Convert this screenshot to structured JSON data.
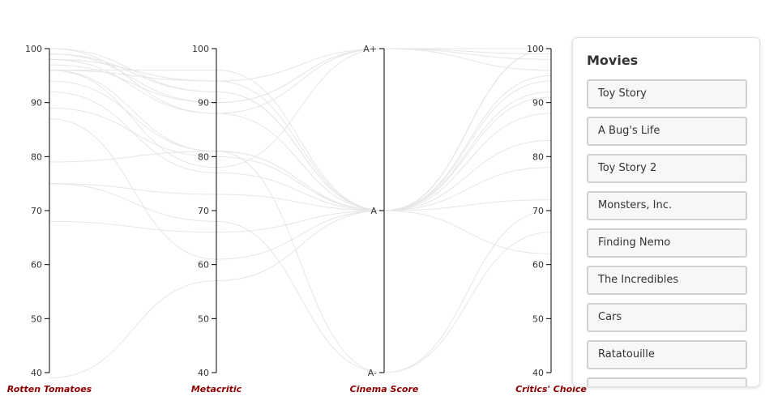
{
  "chart_data": {
    "type": "parallel-coordinates",
    "axes": [
      {
        "name": "Rotten Tomatoes",
        "ticks": [
          "40",
          "50",
          "60",
          "70",
          "80",
          "90",
          "100"
        ],
        "range": [
          40,
          100
        ]
      },
      {
        "name": "Metacritic",
        "ticks": [
          "40",
          "50",
          "60",
          "70",
          "80",
          "90",
          "100"
        ],
        "range": [
          40,
          100
        ]
      },
      {
        "name": "Cinema Score",
        "ticks": [
          "A-",
          "A",
          "A+"
        ],
        "categories": [
          "A-",
          "A",
          "A+"
        ]
      },
      {
        "name": "Critics' Choice",
        "ticks": [
          "40",
          "50",
          "60",
          "70",
          "80",
          "90",
          "100"
        ],
        "range": [
          40,
          100
        ]
      }
    ],
    "lines": [
      [
        100,
        92,
        "A",
        88
      ],
      [
        92,
        77,
        "A",
        94
      ],
      [
        100,
        88,
        "A+",
        100
      ],
      [
        96,
        78,
        "A+",
        98
      ],
      [
        99,
        90,
        "A+",
        100
      ],
      [
        97,
        90,
        "A+",
        96
      ],
      [
        75,
        73,
        "A",
        78
      ],
      [
        96,
        96,
        "A",
        100
      ],
      [
        96,
        94,
        "A",
        100
      ],
      [
        98,
        88,
        "A",
        100
      ],
      [
        99,
        92,
        "A",
        100
      ],
      [
        39,
        57,
        "A",
        62
      ],
      [
        79,
        81,
        "A-",
        66
      ],
      [
        89,
        80,
        "A",
        92
      ],
      [
        98,
        94,
        "A+",
        99
      ],
      [
        68,
        66,
        "A",
        72
      ],
      [
        94,
        81,
        "A",
        91
      ],
      [
        75,
        68,
        "A-",
        70
      ],
      [
        96,
        81,
        "A",
        95
      ],
      [
        87,
        61,
        "A",
        83
      ]
    ],
    "line_color": "#e6e6e6"
  },
  "panel": {
    "title": "Movies",
    "movies": [
      "Toy Story",
      "A Bug's Life",
      "Toy Story 2",
      "Monsters, Inc.",
      "Finding Nemo",
      "The Incredibles",
      "Cars",
      "Ratatouille",
      ""
    ]
  }
}
